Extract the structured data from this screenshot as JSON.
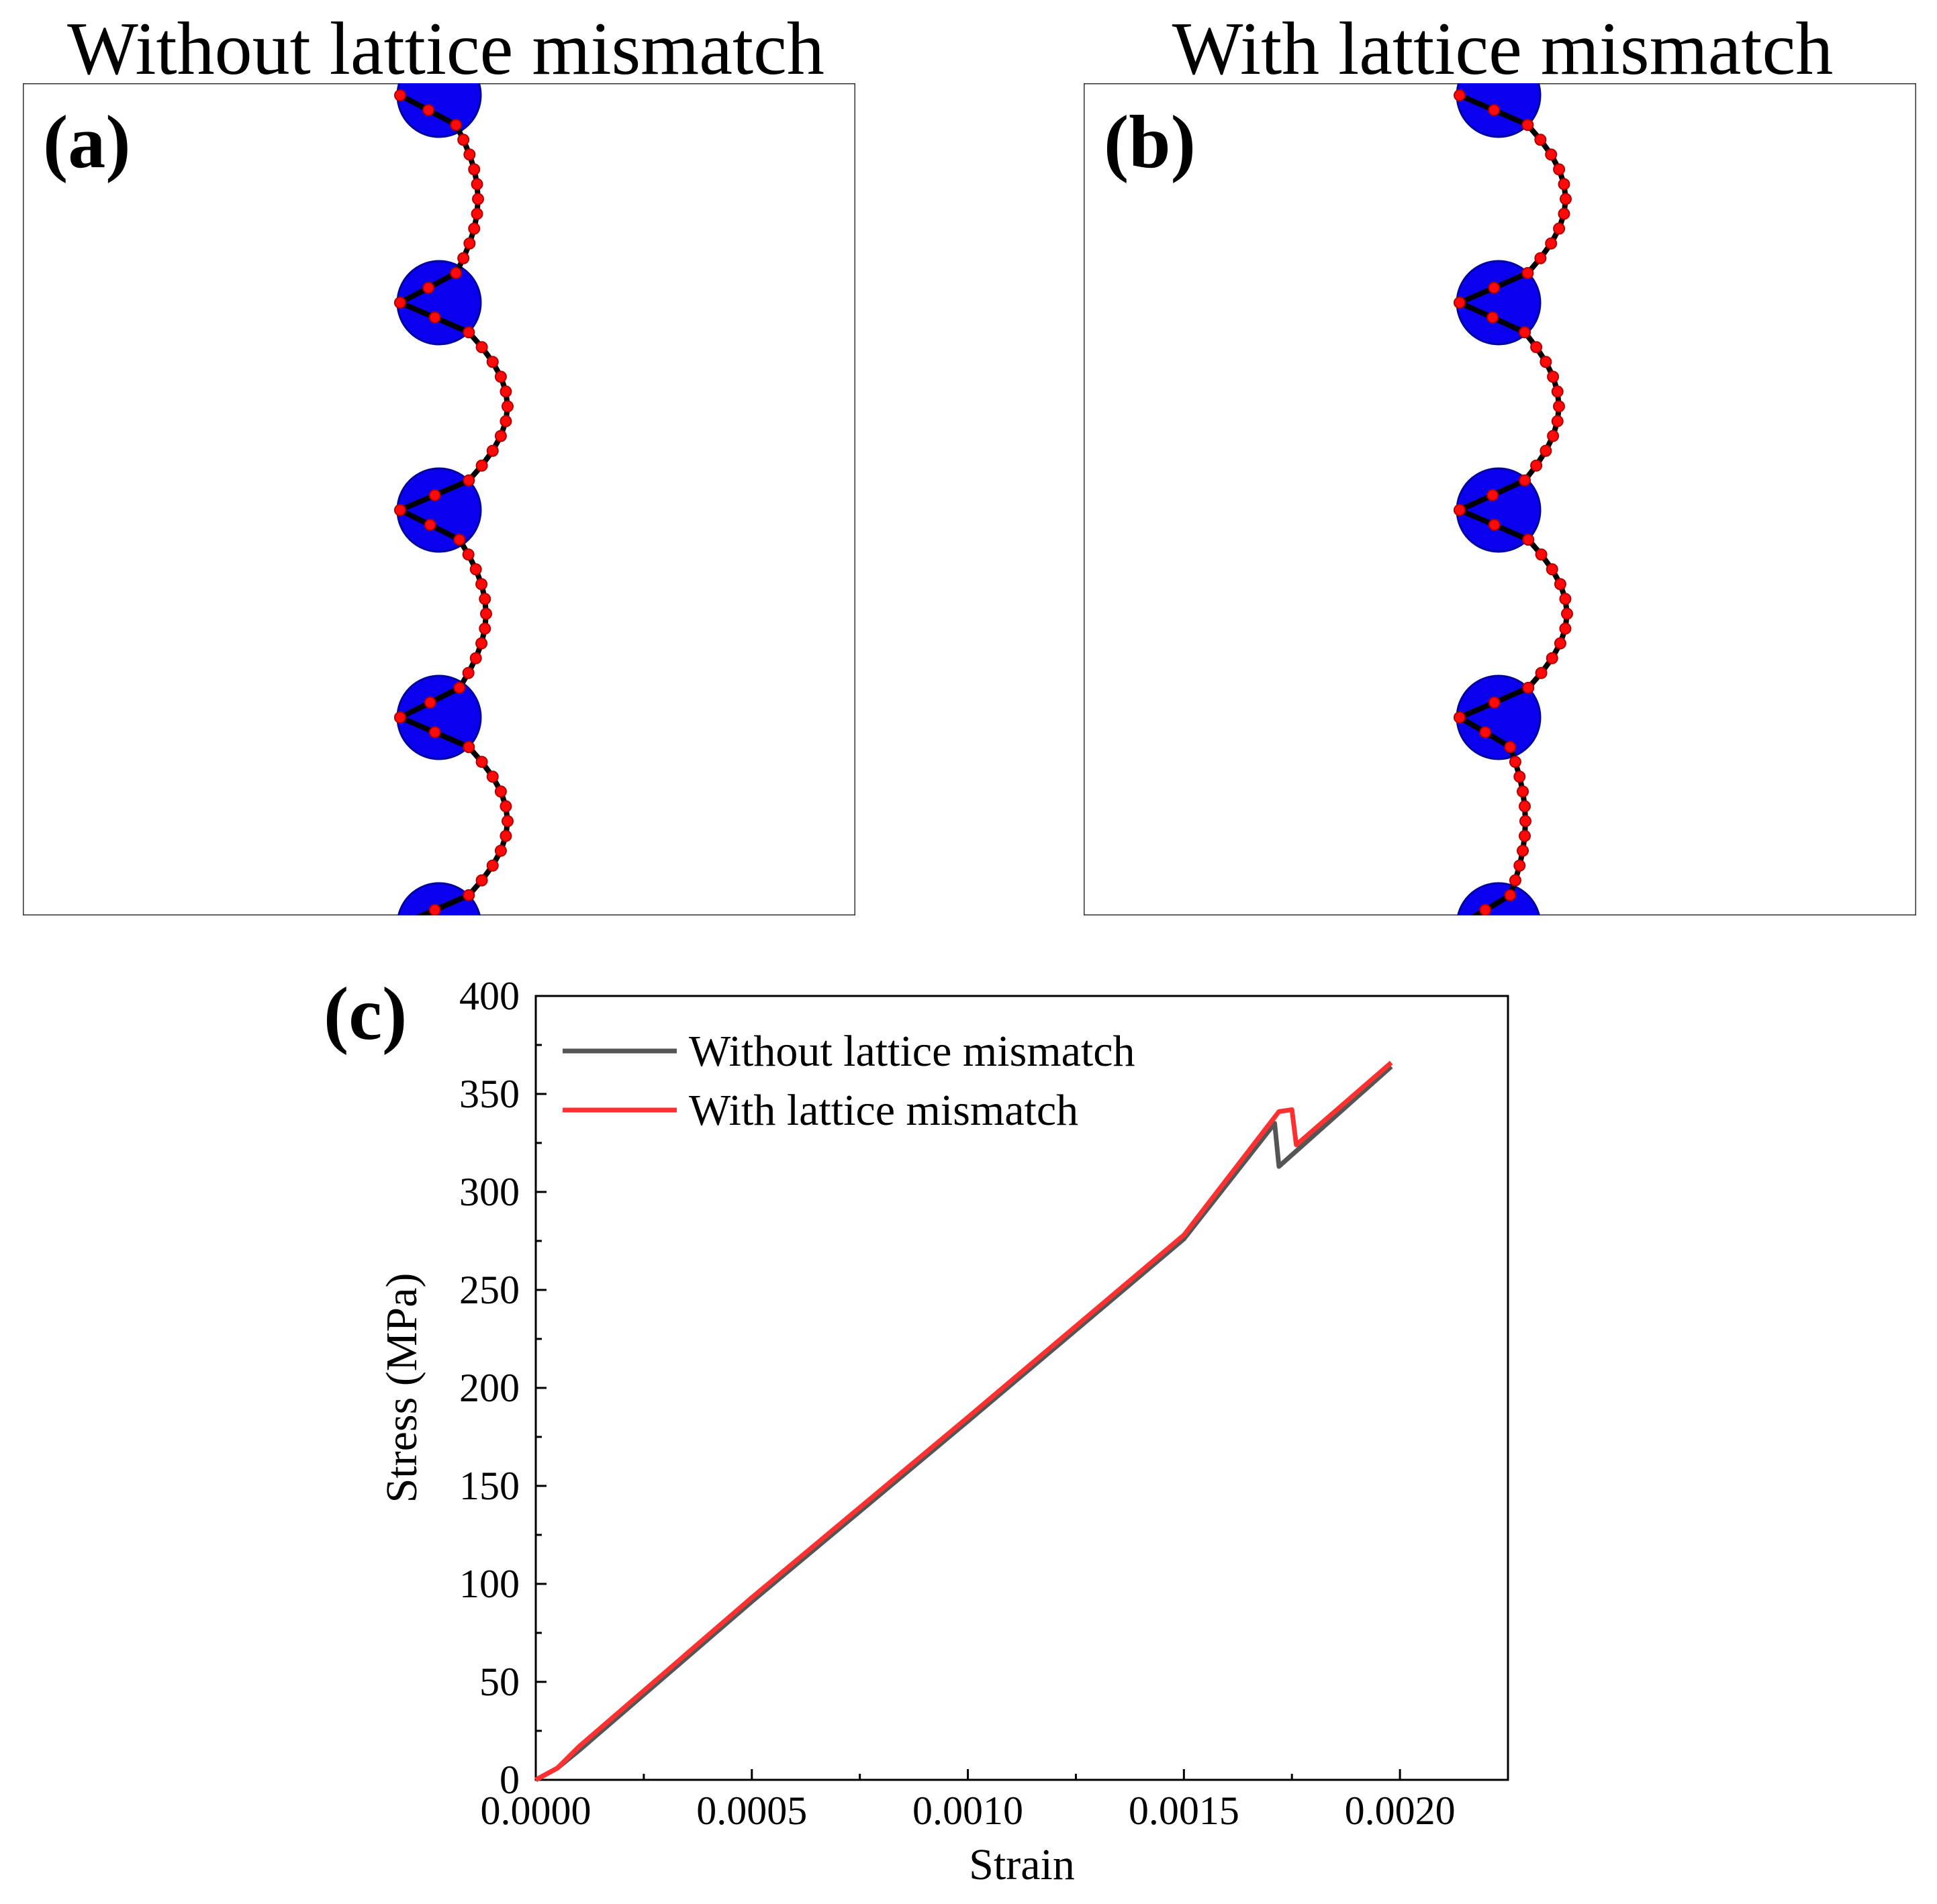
{
  "panel_a": {
    "title": "Without lattice mismatch",
    "tag": "(a)",
    "description_points": "particles at x_center, dislocation line bows between them",
    "particle_rows": [
      0,
      1,
      2,
      3,
      4
    ],
    "amplitude": "large"
  },
  "panel_b": {
    "title": "With lattice mismatch",
    "tag": "(b)",
    "particle_rows": [
      0,
      1,
      2,
      3,
      4
    ]
  },
  "colors": {
    "particle": "#0a00ee",
    "node": "#ff0a0a",
    "line": "#000000",
    "series_without": "#555555",
    "series_with": "#ff3030"
  },
  "chart_data": {
    "type": "line",
    "tag": "(c)",
    "xlabel": "Strain",
    "ylabel": "Stress (MPa)",
    "xlim": [
      0.0,
      0.00225
    ],
    "ylim": [
      0,
      400
    ],
    "xticks": [
      0.0,
      0.0005,
      0.001,
      0.0015,
      0.002
    ],
    "xtick_labels": [
      "0.0000",
      "0.0005",
      "0.0010",
      "0.0015",
      "0.0020"
    ],
    "yticks": [
      0,
      50,
      100,
      150,
      200,
      250,
      300,
      350,
      400
    ],
    "ytick_labels": [
      "0",
      "50",
      "100",
      "150",
      "200",
      "250",
      "300",
      "350",
      "400"
    ],
    "legend_position": "top-left",
    "series": [
      {
        "name": "Without lattice mismatch",
        "color": "#555555",
        "x": [
          0.0,
          5e-05,
          0.0001,
          0.0005,
          0.001,
          0.0015,
          0.00171,
          0.00172,
          0.00198
        ],
        "y": [
          0,
          6,
          15,
          91,
          183,
          276,
          335,
          313,
          364
        ]
      },
      {
        "name": "With lattice mismatch",
        "color": "#ff3030",
        "x": [
          0.0,
          5e-05,
          0.0001,
          0.0005,
          0.001,
          0.0015,
          0.00172,
          0.00175,
          0.00176,
          0.00198
        ],
        "y": [
          0,
          6,
          17,
          93,
          185,
          278,
          341,
          342,
          324,
          366
        ]
      }
    ]
  }
}
